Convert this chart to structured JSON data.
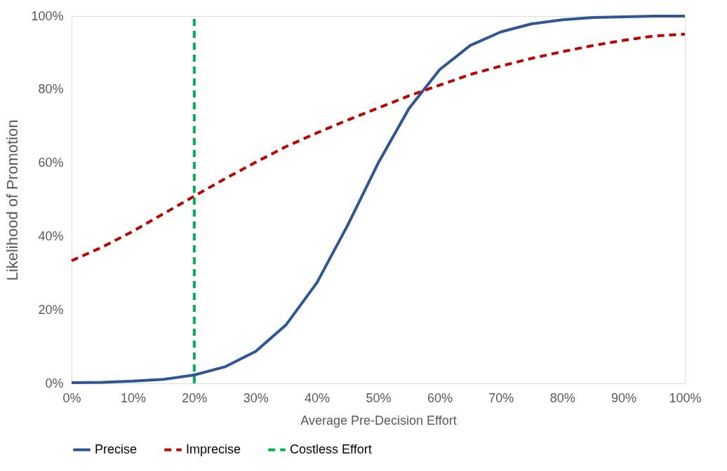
{
  "chart_data": {
    "type": "line",
    "xlabel": "Average Pre-Decision Effort",
    "ylabel": "Likelihood of Promotion",
    "x": [
      0,
      5,
      10,
      15,
      20,
      25,
      30,
      35,
      40,
      45,
      50,
      55,
      60,
      65,
      70,
      75,
      80,
      85,
      90,
      95,
      100
    ],
    "series": [
      {
        "name": "Precise",
        "color": "#2f5597",
        "line_style": "solid",
        "values": [
          0.2,
          0.3,
          0.6,
          1.1,
          2.3,
          4.5,
          8.7,
          16,
          27.4,
          43,
          60,
          74.8,
          85.4,
          92,
          95.7,
          97.9,
          99,
          99.6,
          99.8,
          100,
          100
        ]
      },
      {
        "name": "Imprecise",
        "color": "#c00000",
        "line_style": "dashed",
        "values": [
          33.4,
          37.1,
          41.4,
          46.2,
          51,
          55.7,
          60.2,
          64.5,
          68.2,
          71.7,
          75,
          78.3,
          81.2,
          84.1,
          86.4,
          88.5,
          90.3,
          92,
          93.4,
          94.6,
          95.1
        ]
      },
      {
        "name": "Costless Effort",
        "color": "#00b050",
        "line_style": "dashed",
        "x": [
          20,
          20
        ],
        "values": [
          0,
          100
        ]
      }
    ],
    "xlim": [
      0,
      100
    ],
    "ylim": [
      0,
      100
    ],
    "xticks": [
      {
        "value": 0,
        "label": "0%"
      },
      {
        "value": 10,
        "label": "10%"
      },
      {
        "value": 20,
        "label": "20%"
      },
      {
        "value": 30,
        "label": "30%"
      },
      {
        "value": 40,
        "label": "40%"
      },
      {
        "value": 50,
        "label": "50%"
      },
      {
        "value": 60,
        "label": "60%"
      },
      {
        "value": 70,
        "label": "70%"
      },
      {
        "value": 80,
        "label": "80%"
      },
      {
        "value": 90,
        "label": "90%"
      },
      {
        "value": 100,
        "label": "100%"
      }
    ],
    "yticks": [
      {
        "value": 0,
        "label": "0%"
      },
      {
        "value": 20,
        "label": "20%"
      },
      {
        "value": 40,
        "label": "40%"
      },
      {
        "value": 60,
        "label": "60%"
      },
      {
        "value": 80,
        "label": "80%"
      },
      {
        "value": 100,
        "label": "100%"
      }
    ],
    "grid": false,
    "legend": "bottom"
  }
}
